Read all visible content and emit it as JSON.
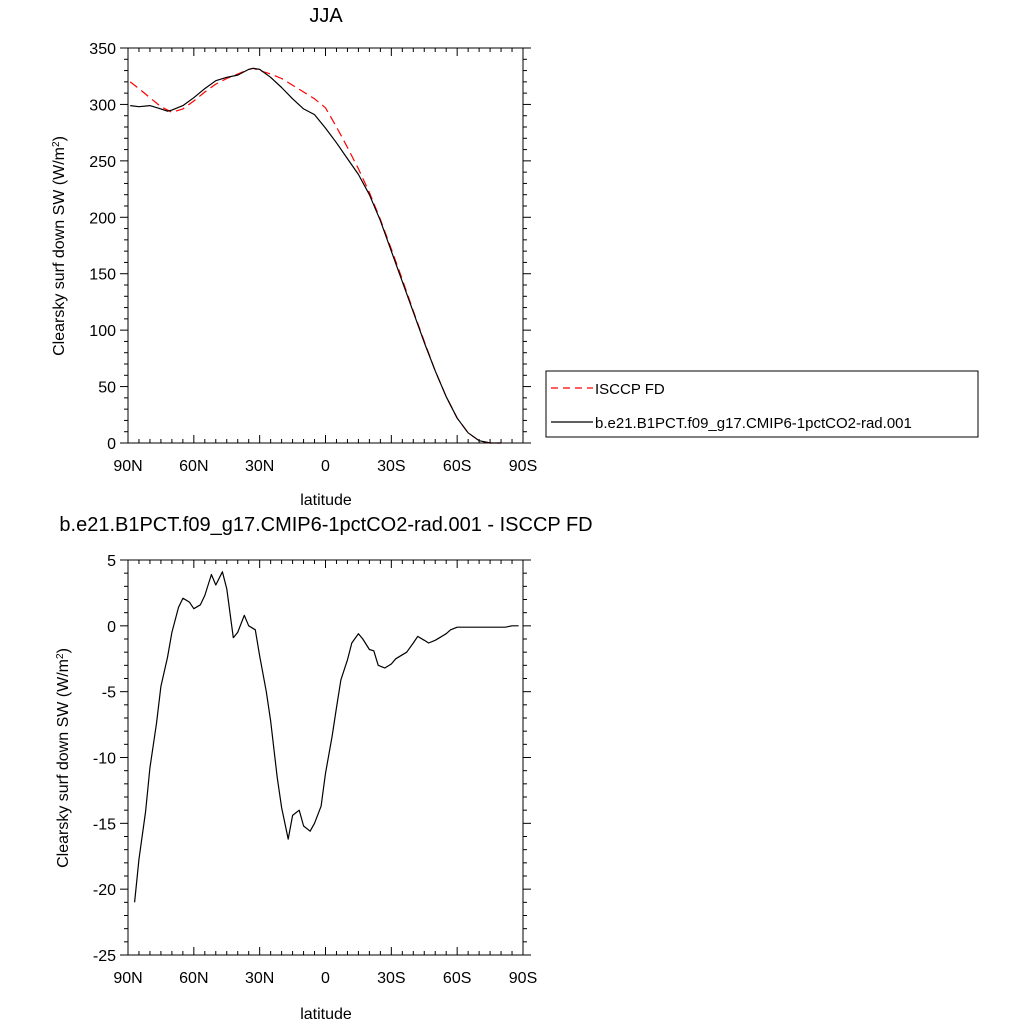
{
  "figure": {
    "top_title": "JJA",
    "bottom_title": "b.e21.B1PCT.f09_g17.CMIP6-1pctCO2-rad.001 - ISCCP FD"
  },
  "chart_data": [
    {
      "type": "line",
      "title": "JJA",
      "xlabel": "latitude",
      "ylabel": "Clearsky surf down SW (W/m²)",
      "ylabel_main": "Clearsky surf down SW (W/m",
      "ylabel_sup": "2",
      "ylabel_tail": ")",
      "xlim": [
        -90,
        90
      ],
      "ylim": [
        0,
        350
      ],
      "x_ticks": [
        -90,
        -60,
        -30,
        0,
        30,
        60,
        90
      ],
      "x_tick_labels": [
        "90N",
        "60N",
        "30N",
        "0",
        "30S",
        "60S",
        "90S"
      ],
      "y_ticks": [
        0,
        50,
        100,
        150,
        200,
        250,
        300,
        350
      ],
      "y_tick_labels": [
        "0",
        "50",
        "100",
        "150",
        "200",
        "250",
        "300",
        "350"
      ],
      "legend_position": "right",
      "series": [
        {
          "name": "ISCCP FD",
          "color": "#ff0000",
          "dash": "dashed",
          "x": [
            -89,
            -85,
            -80,
            -75,
            -70,
            -65,
            -60,
            -55,
            -50,
            -45,
            -40,
            -35,
            -33,
            -30,
            -25,
            -20,
            -15,
            -10,
            -5,
            0,
            5,
            10,
            15,
            20,
            25,
            30,
            35,
            40,
            45,
            50,
            55,
            60,
            65,
            70,
            75,
            80
          ],
          "y": [
            320,
            314,
            306,
            298,
            293,
            296,
            303,
            311,
            318,
            323,
            327,
            331,
            332,
            330,
            327,
            323,
            317,
            311,
            305,
            297,
            280,
            262,
            243,
            222,
            198,
            172,
            145,
            117,
            90,
            64,
            41,
            22,
            9,
            2,
            0,
            0
          ]
        },
        {
          "name": "b.e21.B1PCT.f09_g17.CMIP6-1pctCO2-rad.001",
          "color": "#000000",
          "dash": "solid",
          "x": [
            -89,
            -85,
            -80,
            -75,
            -72,
            -70,
            -65,
            -60,
            -55,
            -50,
            -45,
            -40,
            -35,
            -33,
            -30,
            -25,
            -20,
            -15,
            -10,
            -5,
            0,
            5,
            10,
            15,
            20,
            25,
            30,
            35,
            40,
            45,
            50,
            55,
            60,
            65,
            70,
            75,
            80
          ],
          "y": [
            299,
            298,
            299,
            296,
            294,
            295,
            299,
            306,
            314,
            321,
            324,
            326,
            331,
            332,
            331,
            324,
            315,
            305,
            296,
            291,
            279,
            266,
            252,
            238,
            220,
            197,
            170,
            143,
            116,
            89,
            64,
            41,
            22,
            9,
            2,
            0,
            0
          ]
        }
      ]
    },
    {
      "type": "line",
      "title": "b.e21.B1PCT.f09_g17.CMIP6-1pctCO2-rad.001 - ISCCP FD",
      "xlabel": "latitude",
      "ylabel": "Clearsky surf down SW (W/m²)",
      "ylabel_main": "Clearsky surf down SW (W/m",
      "ylabel_sup": "2",
      "ylabel_tail": ")",
      "xlim": [
        -90,
        90
      ],
      "ylim": [
        -25,
        5
      ],
      "x_ticks": [
        -90,
        -60,
        -30,
        0,
        30,
        60,
        90
      ],
      "x_tick_labels": [
        "90N",
        "60N",
        "30N",
        "0",
        "30S",
        "60S",
        "90S"
      ],
      "y_ticks": [
        -25,
        -20,
        -15,
        -10,
        -5,
        0,
        5
      ],
      "y_tick_labels": [
        "-25",
        "-20",
        "-15",
        "-10",
        "-5",
        "0",
        "5"
      ],
      "series": [
        {
          "color": "#000000",
          "dash": "solid",
          "x": [
            -87,
            -85,
            -82,
            -80,
            -77,
            -75,
            -72,
            -70,
            -67,
            -65,
            -62,
            -60,
            -57,
            -55,
            -52,
            -50,
            -47,
            -45,
            -42,
            -40,
            -37,
            -35,
            -32,
            -30,
            -27,
            -25,
            -22,
            -20,
            -17,
            -15,
            -12,
            -10,
            -7,
            -5,
            -2,
            0,
            3,
            5,
            7,
            10,
            12,
            15,
            17,
            20,
            22,
            24,
            27,
            30,
            32,
            35,
            37,
            40,
            42,
            45,
            47,
            50,
            52,
            55,
            57,
            60,
            62,
            65,
            67,
            70,
            72,
            75,
            77,
            80,
            82,
            85,
            88
          ],
          "y": [
            -21.0,
            -17.7,
            -14.1,
            -10.8,
            -7.4,
            -4.6,
            -2.4,
            -0.5,
            1.4,
            2.1,
            1.8,
            1.3,
            1.6,
            2.3,
            3.9,
            3.1,
            4.1,
            2.8,
            -0.9,
            -0.5,
            0.8,
            0.0,
            -0.3,
            -2.3,
            -5.0,
            -7.2,
            -11.5,
            -13.8,
            -16.2,
            -14.4,
            -14.0,
            -15.2,
            -15.6,
            -15.0,
            -13.7,
            -11.2,
            -8.4,
            -6.2,
            -4.1,
            -2.6,
            -1.3,
            -0.6,
            -1.0,
            -1.8,
            -1.9,
            -3.0,
            -3.2,
            -2.9,
            -2.5,
            -2.2,
            -2.0,
            -1.3,
            -0.8,
            -1.1,
            -1.3,
            -1.1,
            -0.9,
            -0.6,
            -0.3,
            -0.1,
            -0.1,
            -0.1,
            -0.1,
            -0.1,
            -0.1,
            -0.1,
            -0.1,
            -0.1,
            -0.1,
            0.0,
            0.0
          ]
        }
      ]
    }
  ]
}
